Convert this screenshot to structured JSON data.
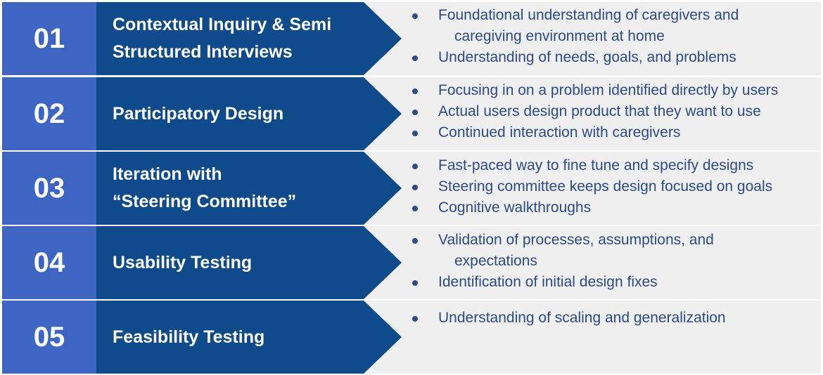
{
  "colors": {
    "number_box": "#3f65c2",
    "arrow": "#0f4a8a",
    "row_background": "#efefef",
    "bullet_text": "#2d4a87",
    "title_text": "#ffffff"
  },
  "steps": [
    {
      "number": "01",
      "title": "Contextual Inquiry & Semi\nStructured Interviews",
      "bullets": [
        {
          "lines": [
            "Foundational understanding of caregivers and",
            "caregiving environment at home"
          ]
        },
        {
          "lines": [
            "Understanding of needs, goals, and problems"
          ]
        }
      ]
    },
    {
      "number": "02",
      "title": "Participatory Design",
      "bullets": [
        {
          "lines": [
            "Focusing in on a problem identified directly by users"
          ]
        },
        {
          "lines": [
            "Actual users design product that they want to use"
          ]
        },
        {
          "lines": [
            "Continued interaction with caregivers"
          ]
        }
      ]
    },
    {
      "number": "03",
      "title": "Iteration with\n“Steering Committee”",
      "bullets": [
        {
          "lines": [
            "Fast-paced way to fine tune and specify designs"
          ]
        },
        {
          "lines": [
            "Steering committee keeps design focused on goals"
          ]
        },
        {
          "lines": [
            "Cognitive walkthroughs"
          ]
        }
      ]
    },
    {
      "number": "04",
      "title": "Usability Testing",
      "bullets": [
        {
          "lines": [
            "Validation of processes, assumptions, and",
            "expectations"
          ]
        },
        {
          "lines": [
            "Identification of initial design fixes"
          ]
        }
      ]
    },
    {
      "number": "05",
      "title": "Feasibility Testing",
      "bullets": [
        {
          "lines": [
            "Understanding of scaling and generalization"
          ]
        }
      ]
    }
  ]
}
